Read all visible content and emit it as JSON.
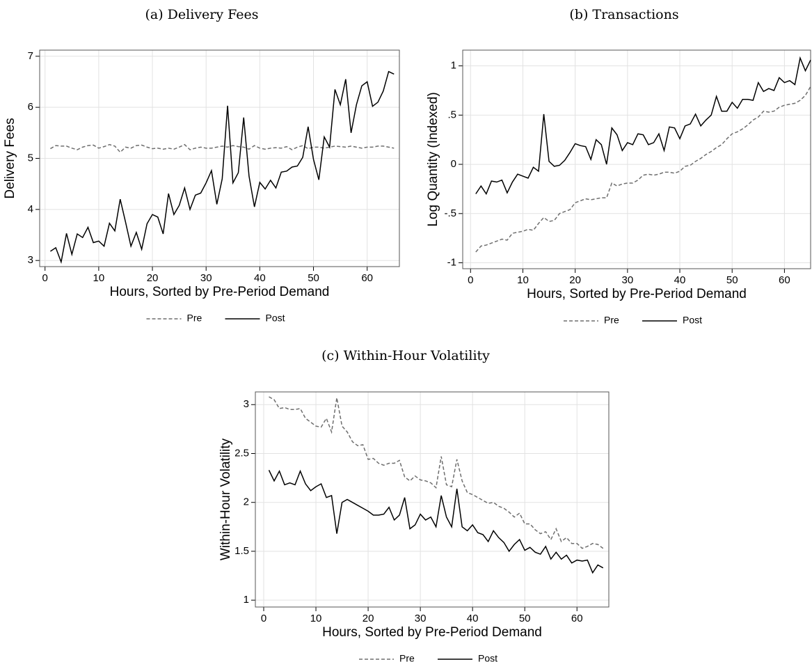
{
  "chart_data": [
    {
      "type": "line",
      "title": "(a) Delivery Fees",
      "x_label": "Hours, Sorted by Pre-Period Demand",
      "y_label": "Delivery Fees",
      "xlim": [
        -1,
        66
      ],
      "ylim": [
        2.88,
        7.12
      ],
      "xticks": [
        0,
        10,
        20,
        30,
        40,
        50,
        60
      ],
      "yticks": [
        3,
        4,
        5,
        6,
        7
      ],
      "grid": true,
      "x": [
        1,
        2,
        3,
        4,
        5,
        6,
        7,
        8,
        9,
        10,
        11,
        12,
        13,
        14,
        15,
        16,
        17,
        18,
        19,
        20,
        21,
        22,
        23,
        24,
        25,
        26,
        27,
        28,
        29,
        30,
        31,
        32,
        33,
        34,
        35,
        36,
        37,
        38,
        39,
        40,
        41,
        42,
        43,
        44,
        45,
        46,
        47,
        48,
        49,
        50,
        51,
        52,
        53,
        54,
        55,
        56,
        57,
        58,
        59,
        60,
        61,
        62,
        63,
        64,
        65
      ],
      "series": [
        {
          "name": "Pre",
          "color": "#6e6e6e",
          "style": "dashed",
          "values": [
            5.19,
            5.25,
            5.24,
            5.24,
            5.2,
            5.17,
            5.22,
            5.25,
            5.26,
            5.2,
            5.23,
            5.27,
            5.24,
            5.12,
            5.22,
            5.2,
            5.25,
            5.26,
            5.22,
            5.19,
            5.2,
            5.18,
            5.2,
            5.18,
            5.22,
            5.27,
            5.17,
            5.2,
            5.22,
            5.2,
            5.2,
            5.22,
            5.24,
            5.22,
            5.25,
            5.23,
            5.22,
            5.18,
            5.25,
            5.2,
            5.18,
            5.2,
            5.21,
            5.2,
            5.23,
            5.17,
            5.22,
            5.25,
            5.19,
            5.22,
            5.22,
            5.2,
            5.22,
            5.24,
            5.23,
            5.22,
            5.24,
            5.22,
            5.2,
            5.22,
            5.22,
            5.24,
            5.24,
            5.22,
            5.2
          ]
        },
        {
          "name": "Post",
          "color": "#000000",
          "style": "solid",
          "values": [
            3.18,
            3.25,
            2.97,
            3.53,
            3.12,
            3.52,
            3.45,
            3.65,
            3.35,
            3.38,
            3.28,
            3.73,
            3.58,
            4.2,
            3.75,
            3.28,
            3.55,
            3.22,
            3.72,
            3.9,
            3.85,
            3.52,
            4.31,
            3.9,
            4.08,
            4.42,
            4.0,
            4.28,
            4.32,
            4.52,
            4.76,
            4.1,
            4.6,
            6.03,
            4.52,
            4.72,
            5.8,
            4.65,
            4.05,
            4.53,
            4.4,
            4.57,
            4.42,
            4.73,
            4.75,
            4.83,
            4.85,
            5.02,
            5.62,
            4.98,
            4.58,
            5.42,
            5.22,
            6.35,
            6.05,
            6.55,
            5.5,
            6.05,
            6.42,
            6.5,
            6.02,
            6.1,
            6.32,
            6.7,
            6.65
          ]
        }
      ]
    },
    {
      "type": "line",
      "title": "(b) Transactions",
      "x_label": "Hours, Sorted by Pre-Period Demand",
      "y_label": "Log Quantity (Indexed)",
      "xlim": [
        -1.5,
        65
      ],
      "ylim": [
        -1.06,
        1.16
      ],
      "xticks": [
        0,
        10,
        20,
        30,
        40,
        50,
        60
      ],
      "yticks": [
        -1,
        {
          "value": -0.5,
          "label": "-.5"
        },
        0,
        {
          "value": 0.5,
          "label": ".5"
        },
        1
      ],
      "grid": true,
      "x": [
        1,
        2,
        3,
        4,
        5,
        6,
        7,
        8,
        9,
        10,
        11,
        12,
        13,
        14,
        15,
        16,
        17,
        18,
        19,
        20,
        21,
        22,
        23,
        24,
        25,
        26,
        27,
        28,
        29,
        30,
        31,
        32,
        33,
        34,
        35,
        36,
        37,
        38,
        39,
        40,
        41,
        42,
        43,
        44,
        45,
        46,
        47,
        48,
        49,
        50,
        51,
        52,
        53,
        54,
        55,
        56,
        57,
        58,
        59,
        60,
        61,
        62,
        63,
        64,
        65
      ],
      "series": [
        {
          "name": "Pre",
          "color": "#6e6e6e",
          "style": "dashed",
          "values": [
            -0.89,
            -0.83,
            -0.82,
            -0.8,
            -0.78,
            -0.76,
            -0.77,
            -0.7,
            -0.69,
            -0.68,
            -0.66,
            -0.67,
            -0.6,
            -0.54,
            -0.58,
            -0.57,
            -0.5,
            -0.48,
            -0.46,
            -0.39,
            -0.37,
            -0.35,
            -0.36,
            -0.35,
            -0.34,
            -0.34,
            -0.19,
            -0.22,
            -0.2,
            -0.19,
            -0.19,
            -0.16,
            -0.11,
            -0.1,
            -0.11,
            -0.1,
            -0.08,
            -0.08,
            -0.09,
            -0.07,
            -0.02,
            -0.01,
            0.03,
            0.06,
            0.1,
            0.13,
            0.17,
            0.2,
            0.26,
            0.31,
            0.33,
            0.36,
            0.4,
            0.45,
            0.48,
            0.54,
            0.53,
            0.54,
            0.58,
            0.6,
            0.61,
            0.62,
            0.65,
            0.7,
            0.79
          ]
        },
        {
          "name": "Post",
          "color": "#000000",
          "style": "solid",
          "values": [
            -0.3,
            -0.22,
            -0.3,
            -0.17,
            -0.18,
            -0.16,
            -0.29,
            -0.18,
            -0.1,
            -0.12,
            -0.14,
            -0.03,
            -0.07,
            0.51,
            0.03,
            -0.02,
            -0.01,
            0.04,
            0.12,
            0.21,
            0.19,
            0.18,
            0.05,
            0.25,
            0.2,
            0.0,
            0.37,
            0.3,
            0.14,
            0.22,
            0.2,
            0.31,
            0.3,
            0.2,
            0.22,
            0.31,
            0.14,
            0.38,
            0.37,
            0.26,
            0.39,
            0.41,
            0.51,
            0.39,
            0.45,
            0.5,
            0.69,
            0.54,
            0.54,
            0.63,
            0.57,
            0.66,
            0.66,
            0.65,
            0.83,
            0.74,
            0.77,
            0.75,
            0.88,
            0.83,
            0.85,
            0.81,
            1.08,
            0.95,
            1.06
          ]
        }
      ]
    },
    {
      "type": "line",
      "title": "(c) Within-Hour Volatility",
      "x_label": "Hours, Sorted by Pre-Period Demand",
      "y_label": "Within-Hour Volatility",
      "xlim": [
        -1.6,
        66.1
      ],
      "ylim": [
        0.93,
        3.13
      ],
      "xticks": [
        0,
        10,
        20,
        30,
        40,
        50,
        60
      ],
      "yticks": [
        1,
        1.5,
        2,
        2.5,
        3
      ],
      "grid": true,
      "x": [
        1,
        2,
        3,
        4,
        5,
        6,
        7,
        8,
        9,
        10,
        11,
        12,
        13,
        14,
        15,
        16,
        17,
        18,
        19,
        20,
        21,
        22,
        23,
        24,
        25,
        26,
        27,
        28,
        29,
        30,
        31,
        32,
        33,
        34,
        35,
        36,
        37,
        38,
        39,
        40,
        41,
        42,
        43,
        44,
        45,
        46,
        47,
        48,
        49,
        50,
        51,
        52,
        53,
        54,
        55,
        56,
        57,
        58,
        59,
        60,
        61,
        62,
        63,
        64,
        65
      ],
      "series": [
        {
          "name": "Pre",
          "color": "#6e6e6e",
          "style": "dashed",
          "values": [
            3.08,
            3.05,
            2.96,
            2.97,
            2.95,
            2.95,
            2.96,
            2.86,
            2.82,
            2.78,
            2.77,
            2.86,
            2.72,
            3.07,
            2.78,
            2.72,
            2.62,
            2.58,
            2.59,
            2.44,
            2.45,
            2.4,
            2.38,
            2.4,
            2.4,
            2.43,
            2.26,
            2.22,
            2.27,
            2.23,
            2.22,
            2.2,
            2.15,
            2.47,
            2.18,
            2.16,
            2.44,
            2.22,
            2.1,
            2.08,
            2.05,
            2.02,
            1.99,
            2.0,
            1.96,
            1.94,
            1.9,
            1.85,
            1.89,
            1.78,
            1.78,
            1.72,
            1.68,
            1.7,
            1.62,
            1.73,
            1.6,
            1.64,
            1.58,
            1.58,
            1.53,
            1.55,
            1.58,
            1.57,
            1.53
          ]
        },
        {
          "name": "Post",
          "color": "#000000",
          "style": "solid",
          "values": [
            2.33,
            2.22,
            2.32,
            2.18,
            2.2,
            2.18,
            2.32,
            2.19,
            2.12,
            2.16,
            2.19,
            2.05,
            2.07,
            1.68,
            2.0,
            2.03,
            2.0,
            1.97,
            1.94,
            1.91,
            1.87,
            1.87,
            1.88,
            1.95,
            1.82,
            1.87,
            2.05,
            1.73,
            1.77,
            1.88,
            1.82,
            1.85,
            1.75,
            2.07,
            1.85,
            1.75,
            2.14,
            1.75,
            1.71,
            1.77,
            1.69,
            1.67,
            1.6,
            1.71,
            1.64,
            1.59,
            1.5,
            1.57,
            1.62,
            1.51,
            1.54,
            1.49,
            1.47,
            1.55,
            1.42,
            1.49,
            1.42,
            1.46,
            1.38,
            1.41,
            1.4,
            1.41,
            1.28,
            1.36,
            1.33
          ]
        }
      ]
    }
  ]
}
